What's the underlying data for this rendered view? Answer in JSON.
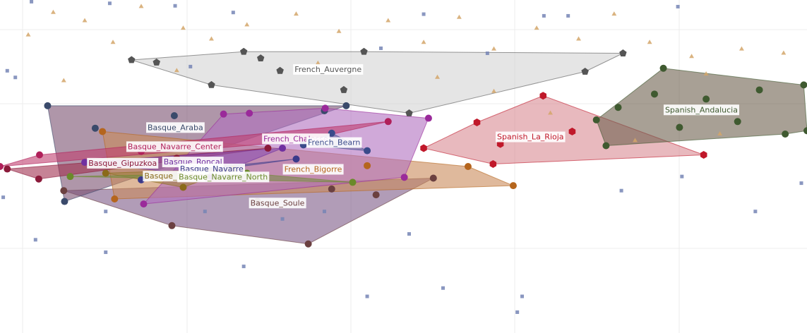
{
  "chart_data": {
    "type": "scatter",
    "xlim": [
      0,
      100
    ],
    "ylim": [
      0,
      40
    ],
    "grid": true,
    "series": [
      {
        "color": "#d4a66a",
        "marker": "triangle",
        "x": [
          6.6,
          10.5,
          17.5,
          22.7,
          26.2,
          30.6,
          36.7,
          42.0,
          48.1,
          52.5,
          56.9,
          61.2,
          66.5,
          71.7,
          76.1,
          80.5,
          85.7,
          91.9,
          97.1,
          3.5,
          14.0,
          39.4,
          61.2,
          68.2,
          78.7,
          89.2,
          54.2,
          21.9,
          7.9,
          87.5
        ],
        "y": [
          38.5,
          37.5,
          39.2,
          36.6,
          35.3,
          37.0,
          38.3,
          36.2,
          37.5,
          34.9,
          37.9,
          34.1,
          36.6,
          35.3,
          38.3,
          34.9,
          33.2,
          34.1,
          33.6,
          35.8,
          34.9,
          32.4,
          29.0,
          26.4,
          23.1,
          23.9,
          30.7,
          31.5,
          30.3,
          31.1
        ]
      },
      {
        "color": "#7585b5",
        "marker": "square",
        "x": [
          3.9,
          13.6,
          21.7,
          28.9,
          52.5,
          67.4,
          70.4,
          84.0,
          0.9,
          1.9,
          23.6,
          47.2,
          60.4,
          13.1,
          30.2,
          45.5,
          54.9,
          64.7,
          64.1,
          84.5,
          93.6,
          77.0,
          25.4,
          35.0,
          50.7,
          13.1,
          4.4,
          40.2,
          99.3,
          0.4
        ],
        "y": [
          39.8,
          39.6,
          39.3,
          38.5,
          38.3,
          38.1,
          38.1,
          39.2,
          31.5,
          30.7,
          32.0,
          34.2,
          33.6,
          9.7,
          8.0,
          4.4,
          5.4,
          4.4,
          2.5,
          18.8,
          14.6,
          17.1,
          14.6,
          13.7,
          11.9,
          14.6,
          11.2,
          14.6,
          18.0,
          16.3
        ]
      },
      {
        "name": "Basque_Soule",
        "color": "#6b4040",
        "fill": "#7d5a87",
        "marker": "circle",
        "x": [
          21.3,
          38.2,
          53.7,
          46.6,
          41.1,
          31.9,
          7.9
        ],
        "y": [
          12.9,
          10.7,
          18.6,
          16.6,
          17.3,
          15.8,
          17.1
        ]
      },
      {
        "name": "Basque_Araba",
        "color": "#3a4a6b",
        "fill": "#7a5070",
        "marker": "circle",
        "x": [
          5.9,
          8.0,
          11.8,
          40.2,
          42.9,
          21.6
        ],
        "y": [
          27.3,
          15.8,
          24.6,
          26.7,
          27.3,
          26.1
        ]
      },
      {
        "name": "French_Bigorre",
        "color": "#b5651d",
        "fill": "#c98a5a",
        "marker": "circle",
        "x": [
          12.7,
          63.6,
          58.0,
          45.5,
          14.2
        ],
        "y": [
          24.2,
          17.7,
          20.0,
          20.1,
          16.1
        ]
      },
      {
        "name": "French_Chalosse",
        "color": "#9a2a9a",
        "fill": "#b070c0",
        "marker": "circle",
        "x": [
          27.7,
          40.3,
          53.1,
          17.8,
          50.1,
          30.9
        ],
        "y": [
          26.3,
          27.0,
          25.8,
          15.5,
          18.7,
          26.4
        ]
      },
      {
        "name": "Basque_Navarre_Center",
        "color": "#b0205a",
        "fill": "#c04070",
        "marker": "circle",
        "x": [
          4.9,
          0,
          48.1,
          37.6,
          17.5
        ],
        "y": [
          21.4,
          20.0,
          25.4,
          23.1,
          21.8
        ]
      },
      {
        "name": "Basque_Gipuzkoa",
        "color": "#8b1a3a",
        "fill": "#a03050",
        "marker": "circle",
        "x": [
          4.8,
          0.9,
          33.2,
          21.9
        ],
        "y": [
          18.5,
          19.7,
          22.2,
          21.0
        ]
      },
      {
        "name": "Basque_Roncal",
        "color": "#7030a0",
        "fill": "#8a50b0",
        "marker": "circle",
        "x": [
          10.5,
          35.0,
          26.2
        ],
        "y": [
          20.5,
          22.2,
          18.8
        ]
      },
      {
        "name": "Basque_Navarre",
        "color": "#3a3a8a",
        "fill": "#6a5a9a",
        "marker": "circle",
        "x": [
          24.5,
          36.7,
          17.5
        ],
        "y": [
          19.7,
          20.9,
          18.4
        ]
      },
      {
        "name": "Basque_Baztan",
        "color": "#8a6a1a",
        "fill": "#a08040",
        "marker": "circle",
        "x": [
          13.1,
          28.9,
          22.7
        ],
        "y": [
          19.2,
          19.7,
          17.5
        ]
      },
      {
        "name": "Basque_Navarre_North",
        "color": "#6a8a2a",
        "fill": "#7a8a4a",
        "marker": "circle",
        "x": [
          8.7,
          30.6,
          43.7
        ],
        "y": [
          18.8,
          19.2,
          18.1
        ]
      },
      {
        "name": "French_Bearn",
        "color": "#3a4a8a",
        "fill": "#6a6aa0",
        "marker": "circle",
        "x": [
          41.1,
          45.5,
          37.6
        ],
        "y": [
          24.0,
          21.9,
          22.6
        ]
      },
      {
        "name": "Spanish_La_Rioja",
        "color": "#c0182a",
        "fill": "#d98a92",
        "marker": "hexagon",
        "x": [
          67.3,
          87.2,
          70.9,
          59.1,
          61.1,
          52.5,
          62.0
        ],
        "y": [
          28.5,
          21.4,
          24.2,
          25.3,
          20.3,
          22.2,
          22.7
        ]
      },
      {
        "name": "French_Auvergne",
        "color": "#555555",
        "fill": "#d4d4d4",
        "marker": "pentagon",
        "x": [
          16.3,
          19.4,
          26.2,
          30.2,
          32.3,
          34.7,
          42.6,
          45.1,
          50.7,
          72.5,
          77.2
        ],
        "y": [
          32.8,
          32.5,
          29.8,
          33.8,
          33.0,
          31.5,
          29.2,
          33.8,
          26.4,
          31.4,
          33.6
        ]
      },
      {
        "name": "Spanish_Andalucia",
        "color": "#3f5a30",
        "fill": "#6e604e",
        "marker": "circle",
        "x": [
          82.2,
          99.6,
          100,
          97.3,
          75.1,
          73.9,
          76.6,
          81.1,
          87.5,
          94.1,
          84.2,
          91.4
        ],
        "y": [
          31.8,
          29.8,
          24.3,
          23.9,
          22.5,
          25.6,
          27.1,
          28.7,
          28.1,
          29.2,
          24.7,
          25.4
        ]
      }
    ]
  }
}
